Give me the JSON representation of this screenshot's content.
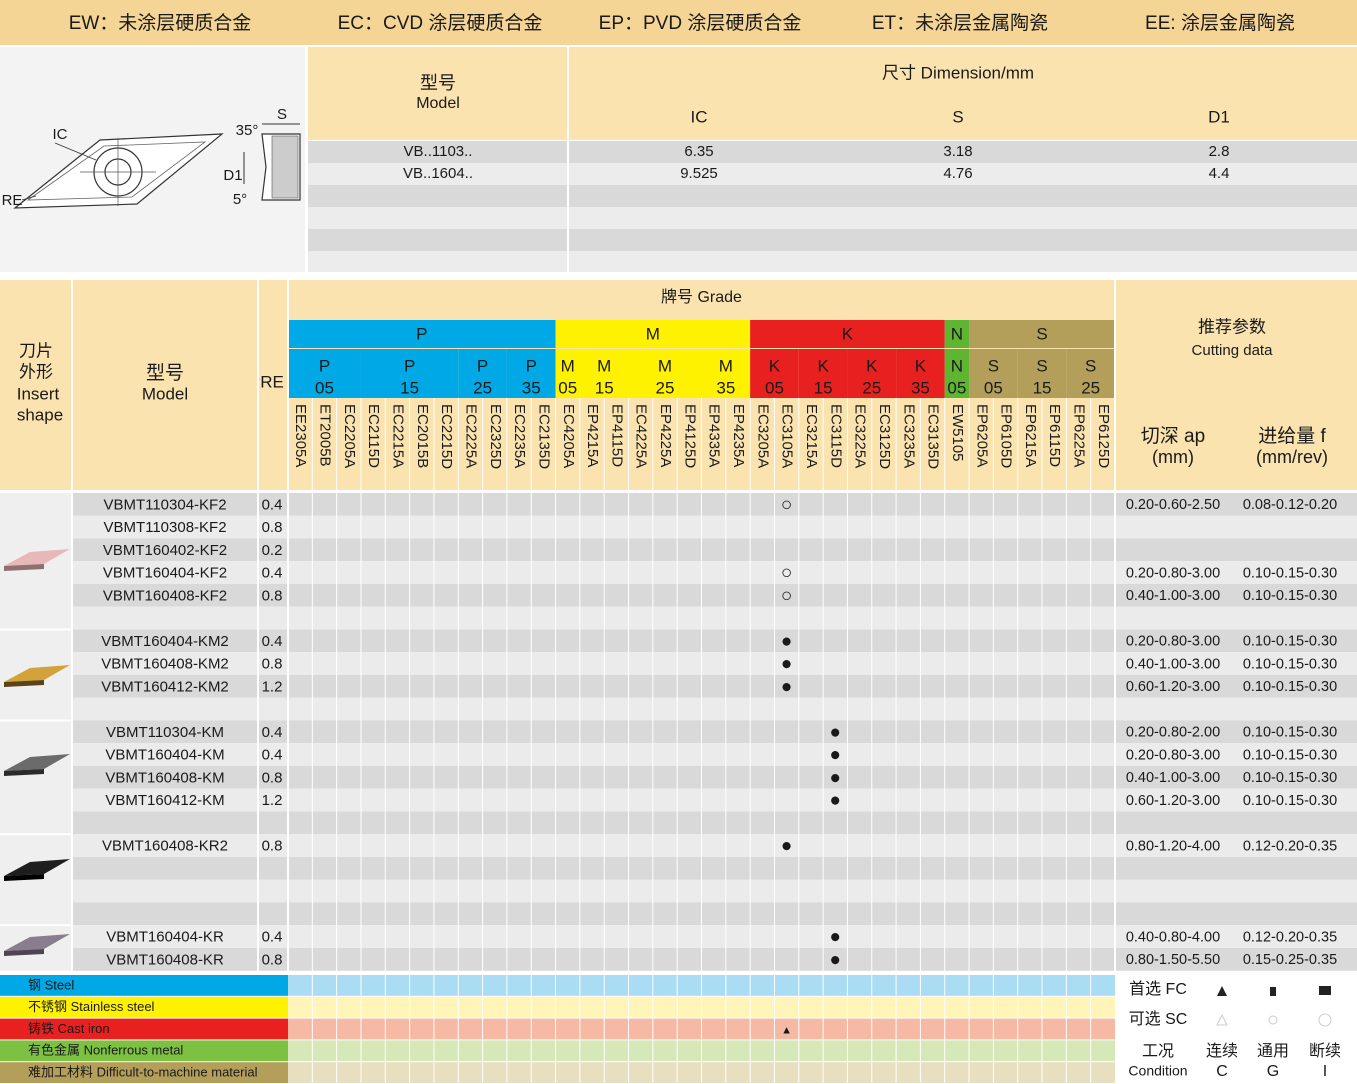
{
  "coatings": [
    "EW：未涂层硬质合金",
    "EC：CVD 涂层硬质合金",
    "EP：PVD 涂层硬质合金",
    "ET：未涂层金属陶瓷",
    "EE: 涂层金属陶瓷"
  ],
  "diagram_labels": [
    "IC",
    "RE",
    "S",
    "35°",
    "D1",
    "5°"
  ],
  "dimensions": {
    "model_label": "型号",
    "model_label_en": "Model",
    "dimension_label": "尺寸 Dimension/mm",
    "columns": [
      "IC",
      "S",
      "D1"
    ],
    "rows": [
      [
        "VB..1103..",
        6.35,
        3.18,
        2.8
      ],
      [
        "VB..1604..",
        9.525,
        4.76,
        4.4
      ]
    ]
  },
  "grades_table": {
    "shape_header": [
      "刀片",
      "外形",
      "Insert",
      "shape"
    ],
    "model_header": [
      "型号",
      "Model"
    ],
    "re_header": "RE",
    "grade_header": "牌号 Grade",
    "cutting_header": [
      "推荐参数",
      "Cutting data"
    ],
    "ap_header": [
      "切深 ap",
      "(mm)"
    ],
    "f_header": [
      "进给量 f",
      "(mm/rev)"
    ],
    "groups": [
      {
        "name": "P",
        "color": "#00a9e6",
        "subgroups": [
          {
            "letter": "P",
            "number": "05",
            "grades": [
              "EE2305A",
              "ET2005B",
              "EC2205A"
            ]
          },
          {
            "letter": "P",
            "number": "15",
            "grades": [
              "EC2115D",
              "EC2215A",
              "EC2015B",
              "EC2215D"
            ]
          },
          {
            "letter": "P",
            "number": "25",
            "grades": [
              "EC2225A",
              "EC2325D"
            ]
          },
          {
            "letter": "P",
            "number": "35",
            "grades": [
              "EC2235A",
              "EC2135D"
            ]
          }
        ]
      },
      {
        "name": "M",
        "color": "#fff200",
        "subgroups": [
          {
            "letter": "M",
            "number": "05",
            "grades": [
              "EC4205A"
            ]
          },
          {
            "letter": "M",
            "number": "15",
            "grades": [
              "EP4215A",
              "EP4115D"
            ]
          },
          {
            "letter": "M",
            "number": "25",
            "grades": [
              "EC4225A",
              "EP4225A",
              "EP4125D"
            ]
          },
          {
            "letter": "M",
            "number": "35",
            "grades": [
              "EP4335A",
              "EP4235A"
            ]
          }
        ]
      },
      {
        "name": "K",
        "color": "#e8201f",
        "subgroups": [
          {
            "letter": "K",
            "number": "05",
            "grades": [
              "EC3205A",
              "EC3105A"
            ]
          },
          {
            "letter": "K",
            "number": "15",
            "grades": [
              "EC3215A",
              "EC3115D"
            ]
          },
          {
            "letter": "K",
            "number": "25",
            "grades": [
              "EC3225A",
              "EC3125D"
            ]
          },
          {
            "letter": "K",
            "number": "35",
            "grades": [
              "EC3235A",
              "EC3135D"
            ]
          }
        ]
      },
      {
        "name": "N",
        "color": "#5db531",
        "subgroups": [
          {
            "letter": "N",
            "number": "05",
            "grades": [
              "EW5105"
            ]
          }
        ]
      },
      {
        "name": "S",
        "color": "#b39f5a",
        "subgroups": [
          {
            "letter": "S",
            "number": "05",
            "grades": [
              "EP6205A",
              "EP6105D"
            ]
          },
          {
            "letter": "S",
            "number": "15",
            "grades": [
              "EP6215A",
              "EP6115D"
            ]
          },
          {
            "letter": "S",
            "number": "25",
            "grades": [
              "EP6225A",
              "EP6125D"
            ]
          }
        ]
      }
    ],
    "rows": [
      {
        "model": "VBMT110304-KF2",
        "re": 0.4,
        "grade": "EC3105A",
        "mark": "○",
        "ap": "0.20-0.60-2.50",
        "f": "0.08-0.12-0.20"
      },
      {
        "model": "VBMT110308-KF2",
        "re": 0.8
      },
      {
        "model": "VBMT160402-KF2",
        "re": 0.2
      },
      {
        "model": "VBMT160404-KF2",
        "re": 0.4,
        "grade": "EC3105A",
        "mark": "○",
        "ap": "0.20-0.80-3.00",
        "f": "0.10-0.15-0.30"
      },
      {
        "model": "VBMT160408-KF2",
        "re": 0.8,
        "grade": "EC3105A",
        "mark": "○",
        "ap": "0.40-1.00-3.00",
        "f": "0.10-0.15-0.30"
      },
      null,
      {
        "model": "VBMT160404-KM2",
        "re": 0.4,
        "grade": "EC3105A",
        "mark": "●",
        "ap": "0.20-0.80-3.00",
        "f": "0.10-0.15-0.30"
      },
      {
        "model": "VBMT160408-KM2",
        "re": 0.8,
        "grade": "EC3105A",
        "mark": "●",
        "ap": "0.40-1.00-3.00",
        "f": "0.10-0.15-0.30"
      },
      {
        "model": "VBMT160412-KM2",
        "re": 1.2,
        "grade": "EC3105A",
        "mark": "●",
        "ap": "0.60-1.20-3.00",
        "f": "0.10-0.15-0.30"
      },
      null,
      {
        "model": "VBMT110304-KM",
        "re": 0.4,
        "grade": "EC3115D",
        "mark": "●",
        "ap": "0.20-0.80-2.00",
        "f": "0.10-0.15-0.30"
      },
      {
        "model": "VBMT160404-KM",
        "re": 0.4,
        "grade": "EC3115D",
        "mark": "●",
        "ap": "0.20-0.80-3.00",
        "f": "0.10-0.15-0.30"
      },
      {
        "model": "VBMT160408-KM",
        "re": 0.8,
        "grade": "EC3115D",
        "mark": "●",
        "ap": "0.40-1.00-3.00",
        "f": "0.10-0.15-0.30"
      },
      {
        "model": "VBMT160412-KM",
        "re": 1.2,
        "grade": "EC3115D",
        "mark": "●",
        "ap": "0.60-1.20-3.00",
        "f": "0.10-0.15-0.30"
      },
      null,
      {
        "model": "VBMT160408-KR2",
        "re": 0.8,
        "grade": "EC3105A",
        "mark": "●",
        "ap": "0.80-1.20-4.00",
        "f": "0.12-0.20-0.35"
      },
      null,
      null,
      null,
      {
        "model": "VBMT160404-KR",
        "re": 0.4,
        "grade": "EC3115D",
        "mark": "●",
        "ap": "0.40-0.80-4.00",
        "f": "0.12-0.20-0.35"
      },
      {
        "model": "VBMT160408-KR",
        "re": 0.8,
        "grade": "EC3115D",
        "mark": "●",
        "ap": "0.80-1.50-5.50",
        "f": "0.15-0.25-0.35"
      }
    ]
  },
  "legend": {
    "materials": [
      {
        "name": "钢 Steel",
        "color": "#00a9e6",
        "band_color": "#aadcf3"
      },
      {
        "name": "不锈钢 Stainless steel",
        "color": "#fff200",
        "band_color": "#fff5b8"
      },
      {
        "name": "铸铁 Cast iron",
        "color": "#e8201f",
        "band_color": "#f6b9a3",
        "grade": "EC3105A",
        "mark": "▲"
      },
      {
        "name": "有色金属 Nonferrous metal",
        "color": "#7cc142",
        "band_color": "#d6e7b8"
      },
      {
        "name": "难加工材料 Difficult-to-machine material",
        "color": "#b39f5a",
        "band_color": "#e7dfc0"
      }
    ],
    "choices": [
      "首选 FC",
      "可选 SC"
    ],
    "condition": [
      "工况",
      "Condition"
    ],
    "condition_columns": [
      [
        "连续",
        "C"
      ],
      [
        "通用",
        "G"
      ],
      [
        "断续",
        "I"
      ]
    ]
  }
}
